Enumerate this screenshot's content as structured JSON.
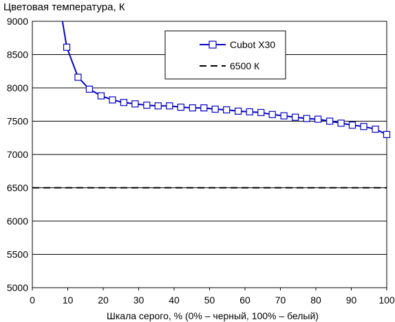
{
  "chart_data": {
    "type": "line",
    "title": "Цветовая температура, К",
    "xlabel": "Шкала серого, % (0% – черный, 100% – белый)",
    "ylabel": "",
    "xlim": [
      0,
      100
    ],
    "ylim": [
      5000,
      9000
    ],
    "xticks": [
      "0",
      "10",
      "20",
      "30",
      "40",
      "50",
      "60",
      "70",
      "80",
      "90",
      "100"
    ],
    "yticks": [
      "5000",
      "5500",
      "6000",
      "6500",
      "7000",
      "7500",
      "8000",
      "8500",
      "9000"
    ],
    "grid": "horizontal",
    "legend_position": "top-right",
    "series": [
      {
        "name": "Cubot X30",
        "color": "#0000c8",
        "marker": "square",
        "x": [
          8.5,
          9.7,
          12.9,
          16.1,
          19.4,
          22.6,
          25.8,
          29.0,
          32.3,
          35.5,
          38.7,
          41.9,
          45.2,
          48.4,
          51.6,
          54.8,
          58.1,
          61.3,
          64.5,
          67.7,
          71.0,
          74.2,
          77.4,
          80.6,
          83.9,
          87.1,
          90.3,
          93.5,
          96.8,
          100.0
        ],
        "marker_start_index": 1,
        "y": [
          9000,
          8610,
          8160,
          7980,
          7880,
          7820,
          7780,
          7760,
          7740,
          7730,
          7730,
          7710,
          7700,
          7700,
          7680,
          7670,
          7650,
          7640,
          7630,
          7600,
          7580,
          7560,
          7540,
          7530,
          7500,
          7470,
          7440,
          7420,
          7380,
          7300
        ]
      },
      {
        "name": "6500 К",
        "color": "#000000",
        "style": "dashed",
        "x": [
          0,
          100
        ],
        "y": [
          6500,
          6500
        ]
      }
    ]
  }
}
